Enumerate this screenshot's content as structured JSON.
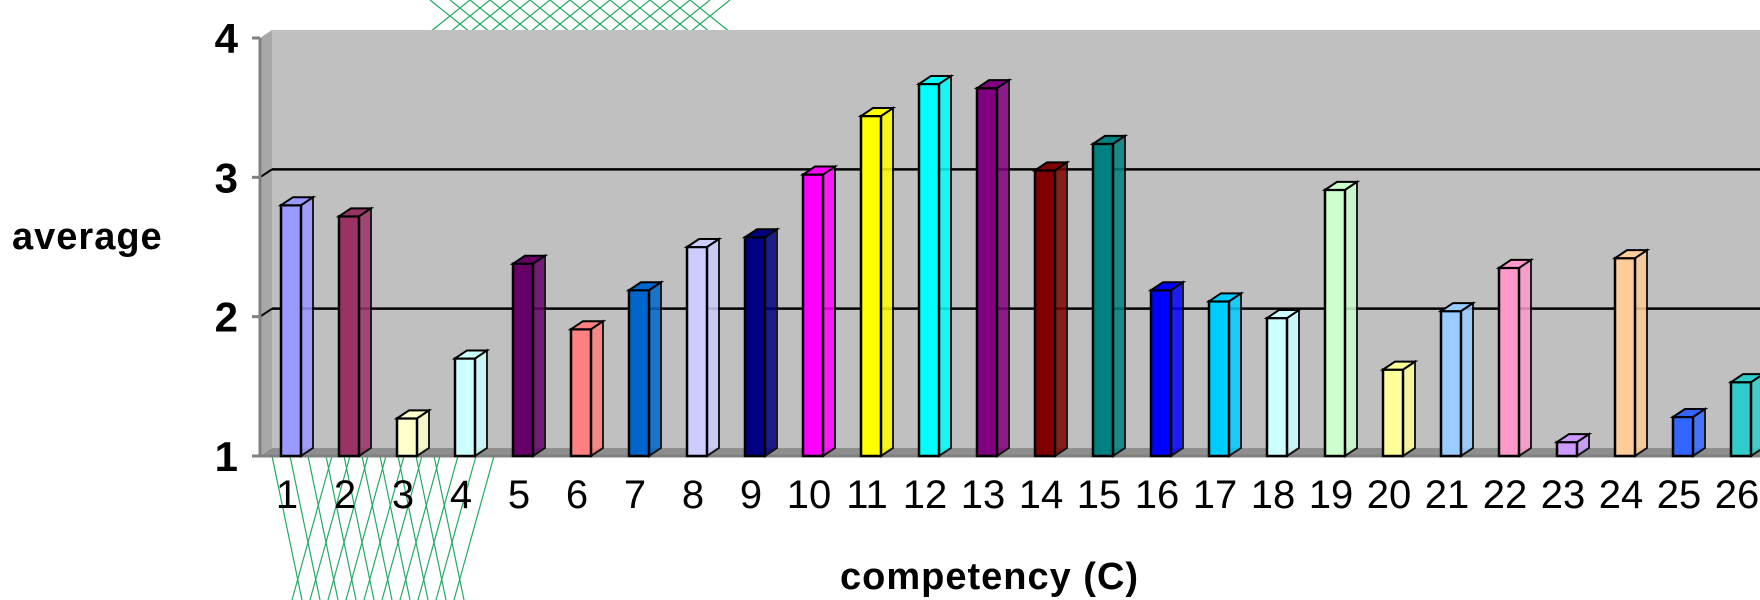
{
  "chart_data": {
    "type": "bar",
    "title": "",
    "xlabel": "competency (C)",
    "ylabel": "average",
    "ylim": [
      1,
      4
    ],
    "yticks": [
      "1",
      "2",
      "3",
      "4"
    ],
    "grid": true,
    "categories": [
      "1",
      "2",
      "3",
      "4",
      "5",
      "6",
      "7",
      "8",
      "9",
      "10",
      "11",
      "12",
      "13",
      "14",
      "15",
      "16",
      "17",
      "18",
      "19",
      "20",
      "21",
      "22",
      "23",
      "24",
      "25",
      "26"
    ],
    "values": [
      2.8,
      2.72,
      1.27,
      1.7,
      2.38,
      1.91,
      2.19,
      2.5,
      2.57,
      3.02,
      3.44,
      3.67,
      3.64,
      3.05,
      3.24,
      2.19,
      2.11,
      1.99,
      2.91,
      1.62,
      2.04,
      2.35,
      1.1,
      2.42,
      1.28,
      1.53
    ],
    "colors": [
      "#9999ff",
      "#993366",
      "#ffffcc",
      "#ccffff",
      "#660066",
      "#ff8080",
      "#0066cc",
      "#ccccff",
      "#000080",
      "#ff00ff",
      "#ffff00",
      "#00ffff",
      "#800080",
      "#800000",
      "#008080",
      "#0000ff",
      "#00ccff",
      "#ccffff",
      "#ccffcc",
      "#ffff99",
      "#99ccff",
      "#ff99cc",
      "#cc99ff",
      "#ffcc99",
      "#3366ff",
      "#33cccc"
    ]
  }
}
